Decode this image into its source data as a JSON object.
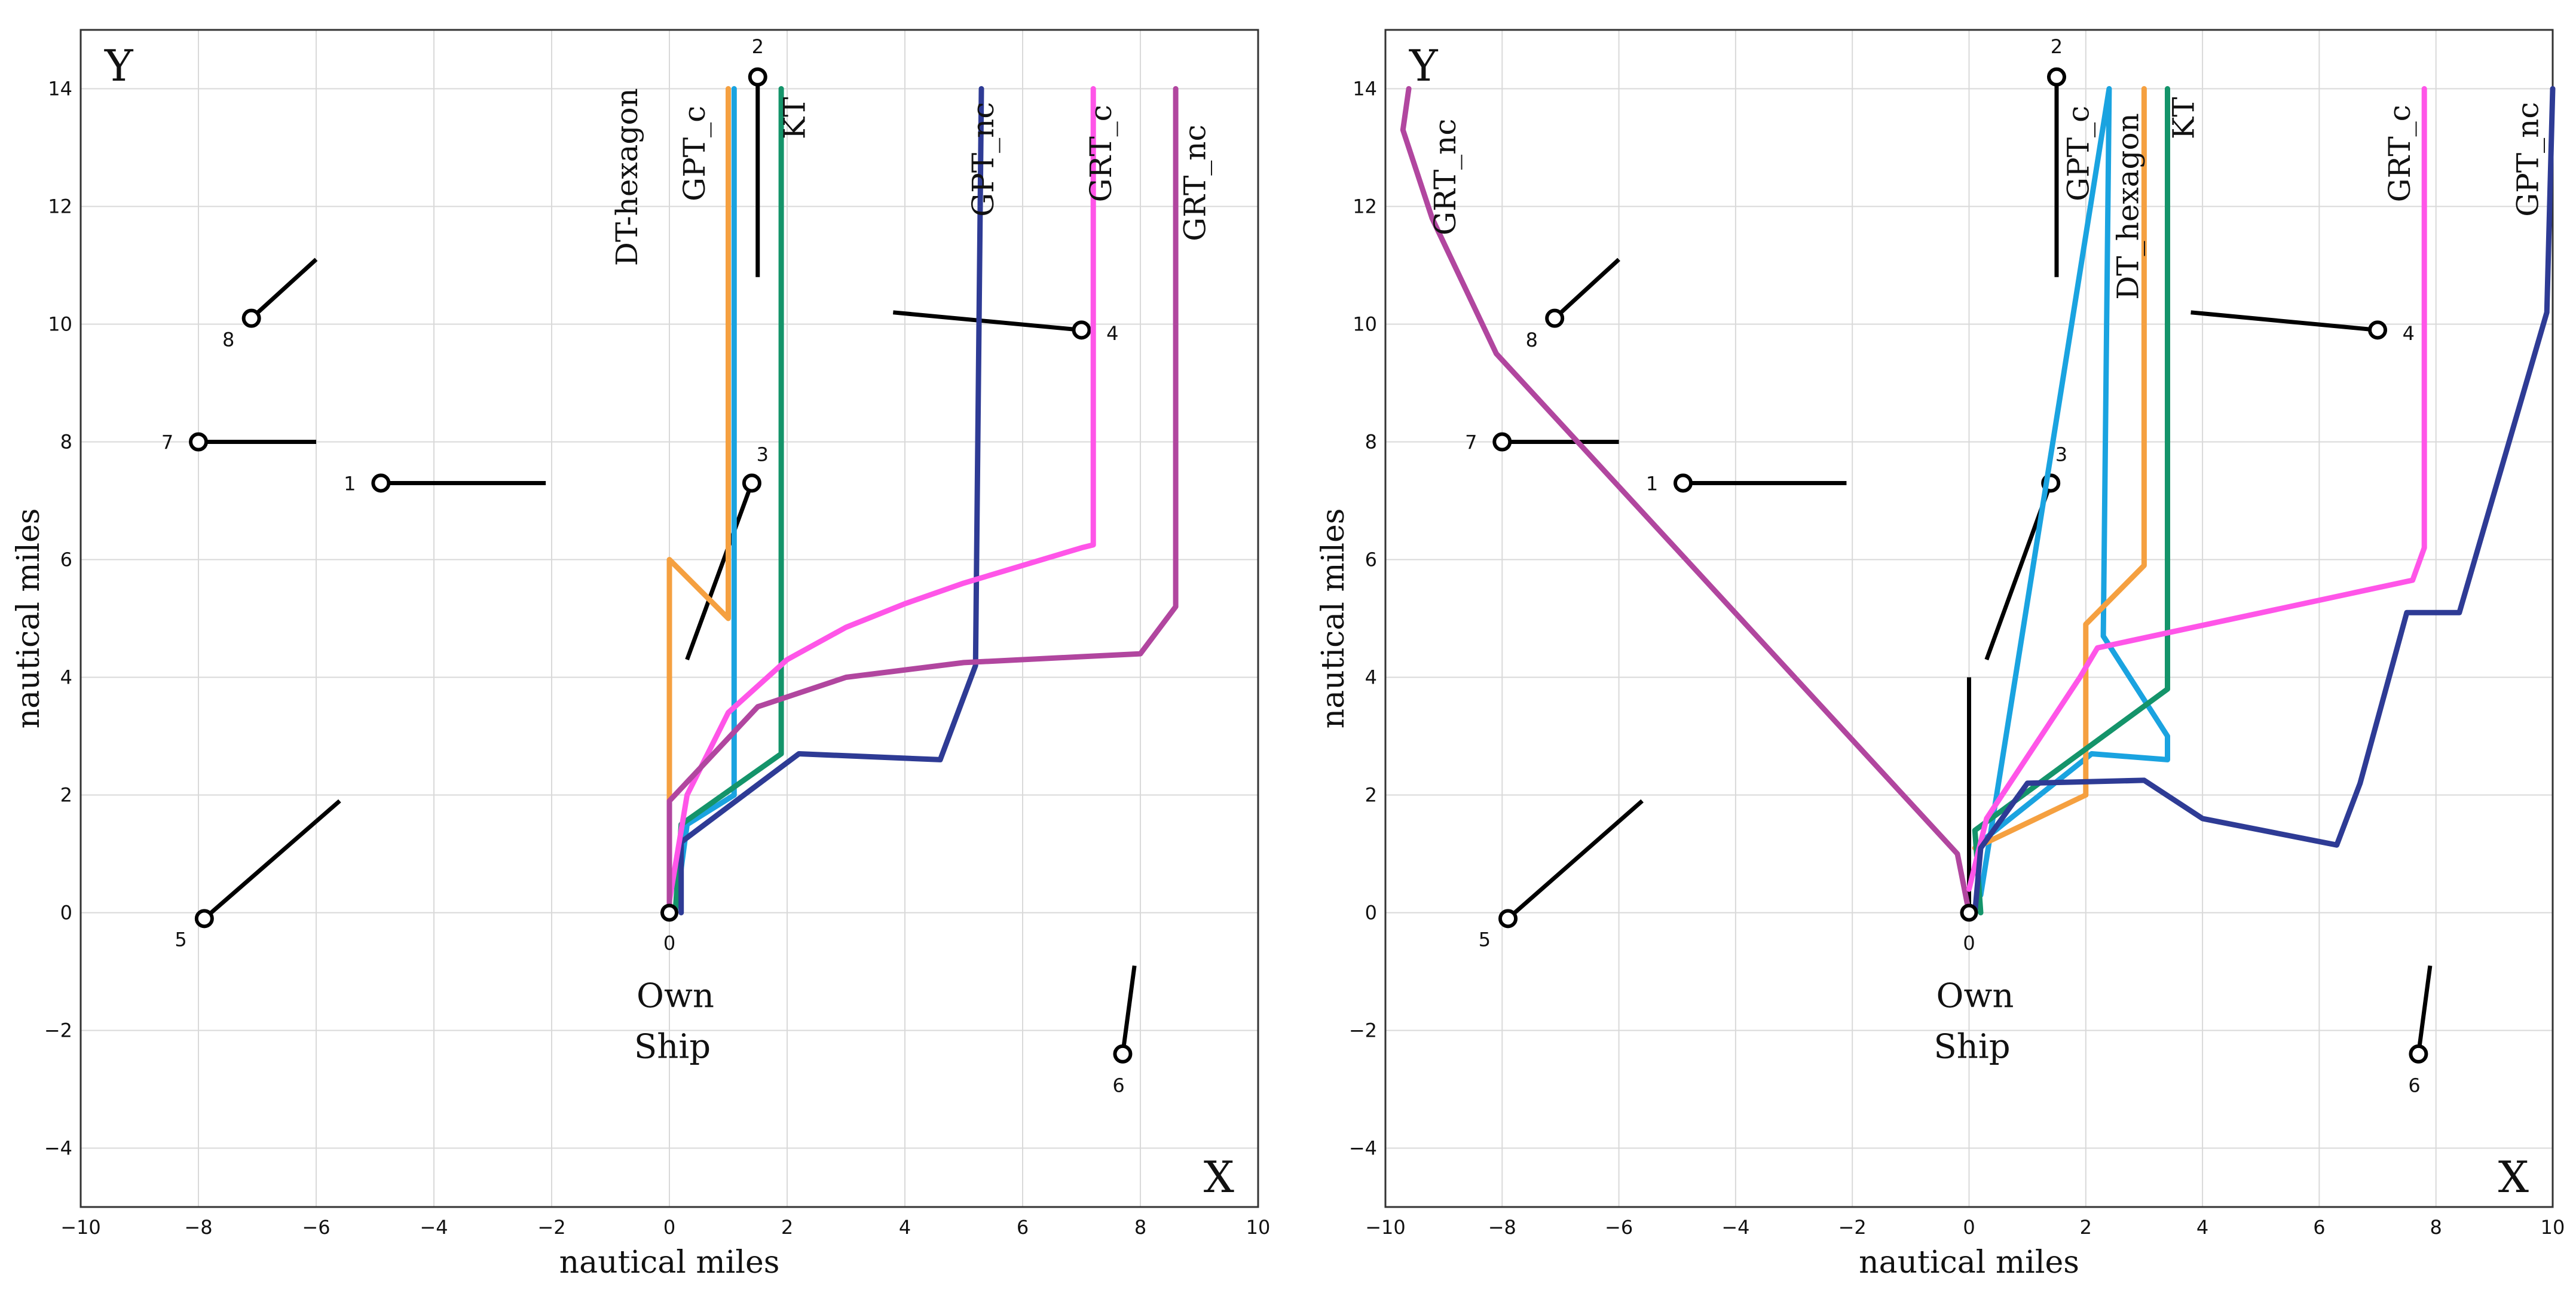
{
  "chart_data": [
    {
      "type": "line",
      "xlabel": "nautical miles",
      "ylabel": "nautical miles",
      "corner_labels": {
        "y": "Y",
        "x": "X"
      },
      "xlim": [
        -10,
        10
      ],
      "ylim": [
        -5,
        15
      ],
      "x_ticks": [
        -10,
        -8,
        -6,
        -4,
        -2,
        0,
        2,
        4,
        6,
        8,
        10
      ],
      "y_ticks": [
        -4,
        -2,
        0,
        2,
        4,
        6,
        8,
        10,
        12,
        14
      ],
      "grid": true,
      "own_ship": {
        "label_line1": "Own",
        "label_line2": "Ship",
        "number": "0",
        "x": 0,
        "y": 0
      },
      "target_ships": [
        {
          "id": "1",
          "x": -4.9,
          "y": 7.3,
          "heading_end": [
            -2.1,
            7.3
          ]
        },
        {
          "id": "2",
          "x": 1.5,
          "y": 14.2,
          "heading_end": [
            1.5,
            10.8
          ]
        },
        {
          "id": "3",
          "x": 1.4,
          "y": 7.3,
          "heading_end": [
            0.3,
            4.3
          ]
        },
        {
          "id": "4",
          "x": 7.0,
          "y": 9.9,
          "heading_end": [
            3.8,
            10.2
          ]
        },
        {
          "id": "5",
          "x": -7.9,
          "y": -0.1,
          "heading_end": [
            -5.6,
            1.9
          ]
        },
        {
          "id": "6",
          "x": 7.7,
          "y": -2.4,
          "heading_end": [
            7.9,
            -0.9
          ]
        },
        {
          "id": "7",
          "x": -8.0,
          "y": 8.0,
          "heading_end": [
            -6.0,
            8.0
          ]
        },
        {
          "id": "8",
          "x": -7.1,
          "y": 10.1,
          "heading_end": [
            -6.0,
            11.1
          ]
        }
      ],
      "own_heading_end": [
        0,
        4.0
      ],
      "series": [
        {
          "name": "DT-hexagon",
          "color": "#f5a040",
          "x": [
            0,
            0,
            0,
            1.0,
            1.0
          ],
          "y": [
            0,
            2,
            6,
            5,
            14
          ]
        },
        {
          "name": "GPT_c",
          "color": "#1aa3e0",
          "x": [
            0.1,
            0.3,
            1.1,
            1.1
          ],
          "y": [
            0,
            1.5,
            2.0,
            14
          ]
        },
        {
          "name": "KT",
          "color": "#14946a",
          "x": [
            0.1,
            0.2,
            1.9,
            1.9
          ],
          "y": [
            0,
            1.5,
            2.7,
            14
          ]
        },
        {
          "name": "GPT_nc",
          "color": "#2e3b95",
          "x": [
            0.2,
            0.2,
            2.2,
            4.6,
            5.2,
            5.3
          ],
          "y": [
            0,
            1.2,
            2.7,
            2.6,
            4.2,
            14
          ]
        },
        {
          "name": "GRT_c",
          "color": "#ff55e8",
          "x": [
            0,
            0.3,
            1.0,
            2.0,
            3.0,
            4.0,
            5.0,
            6.0,
            7.0,
            7.2,
            7.2
          ],
          "y": [
            0.2,
            2.0,
            3.4,
            4.3,
            4.85,
            5.25,
            5.6,
            5.9,
            6.2,
            6.25,
            14
          ]
        },
        {
          "name": "GRT_nc",
          "color": "#b1469f",
          "x": [
            0,
            0,
            1.5,
            3.0,
            5.0,
            7.0,
            8.0,
            8.6,
            8.6
          ],
          "y": [
            0,
            1.9,
            3.5,
            4.0,
            4.25,
            4.35,
            4.4,
            5.2,
            14
          ]
        }
      ],
      "series_label_positions": {
        "DT-hexagon": [
          -0.55,
          12.5
        ],
        "GPT_c": [
          0.6,
          12.9
        ],
        "KT": [
          2.3,
          13.5
        ],
        "GPT_nc": [
          5.5,
          12.8
        ],
        "GRT_c": [
          7.5,
          12.9
        ],
        "GRT_nc": [
          9.1,
          12.4
        ]
      }
    },
    {
      "type": "line",
      "xlabel": "nautical miles",
      "ylabel": "nautical miles",
      "corner_labels": {
        "y": "Y",
        "x": "X"
      },
      "xlim": [
        -10,
        10
      ],
      "ylim": [
        -5,
        15
      ],
      "x_ticks": [
        -10,
        -8,
        -6,
        -4,
        -2,
        0,
        2,
        4,
        6,
        8,
        10
      ],
      "y_ticks": [
        -4,
        -2,
        0,
        2,
        4,
        6,
        8,
        10,
        12,
        14
      ],
      "grid": true,
      "own_ship": {
        "label_line1": "Own",
        "label_line2": "Ship",
        "number": "0",
        "x": 0,
        "y": 0
      },
      "target_ships": [
        {
          "id": "1",
          "x": -4.9,
          "y": 7.3,
          "heading_end": [
            -2.1,
            7.3
          ]
        },
        {
          "id": "2",
          "x": 1.5,
          "y": 14.2,
          "heading_end": [
            1.5,
            10.8
          ]
        },
        {
          "id": "3",
          "x": 1.4,
          "y": 7.3,
          "heading_end": [
            0.3,
            4.3
          ]
        },
        {
          "id": "4",
          "x": 7.0,
          "y": 9.9,
          "heading_end": [
            3.8,
            10.2
          ]
        },
        {
          "id": "5",
          "x": -7.9,
          "y": -0.1,
          "heading_end": [
            -5.6,
            1.9
          ]
        },
        {
          "id": "6",
          "x": 7.7,
          "y": -2.4,
          "heading_end": [
            7.9,
            -0.9
          ]
        },
        {
          "id": "7",
          "x": -8.0,
          "y": 8.0,
          "heading_end": [
            -6.0,
            8.0
          ]
        },
        {
          "id": "8",
          "x": -7.1,
          "y": 10.1,
          "heading_end": [
            -6.0,
            11.1
          ]
        }
      ],
      "own_heading_end": [
        0,
        4.0
      ],
      "series": [
        {
          "name": "GRT_nc",
          "color": "#b1469f",
          "x": [
            0,
            -0.2,
            -8.1,
            -9.2,
            -9.7,
            -9.6
          ],
          "y": [
            0,
            1.0,
            9.5,
            11.8,
            13.3,
            14
          ]
        },
        {
          "name": "GPT_c",
          "color": "#1aa3e0",
          "x": [
            0.2,
            2.4,
            2.3,
            3.4,
            3.4,
            2.1,
            0.2
          ],
          "y": [
            0.3,
            14,
            4.7,
            3.0,
            2.6,
            2.7,
            1.2
          ]
        },
        {
          "name": "DT_hexagon",
          "color": "#f5a040",
          "x": [
            0.1,
            2.0,
            2.0,
            3.0,
            3.0
          ],
          "y": [
            1.1,
            2.0,
            4.9,
            5.9,
            14
          ]
        },
        {
          "name": "KT",
          "color": "#14946a",
          "x": [
            0.2,
            0.1,
            3.4,
            3.4
          ],
          "y": [
            0,
            1.4,
            3.8,
            14
          ]
        },
        {
          "name": "GRT_c",
          "color": "#ff55e8",
          "x": [
            0,
            0.3,
            1.9,
            2.2,
            7.6,
            7.8,
            7.8
          ],
          "y": [
            0.4,
            1.6,
            4.0,
            4.5,
            5.65,
            6.2,
            14
          ]
        },
        {
          "name": "GPT_nc",
          "color": "#2e3b95",
          "x": [
            0.1,
            0.2,
            1.0,
            3.0,
            4.0,
            6.3,
            6.7,
            7.5,
            8.4,
            9.9,
            10.0
          ],
          "y": [
            0,
            1.1,
            2.2,
            2.25,
            1.6,
            1.15,
            2.2,
            5.1,
            5.1,
            10.2,
            14
          ]
        }
      ],
      "series_label_positions": {
        "GRT_nc": [
          -8.8,
          12.5
        ],
        "GPT_c": [
          2.05,
          12.9
        ],
        "DT_hexagon": [
          2.9,
          12.0
        ],
        "KT": [
          3.85,
          13.5
        ],
        "GRT_c": [
          7.55,
          12.9
        ],
        "GPT_nc": [
          9.75,
          12.8
        ]
      }
    }
  ]
}
